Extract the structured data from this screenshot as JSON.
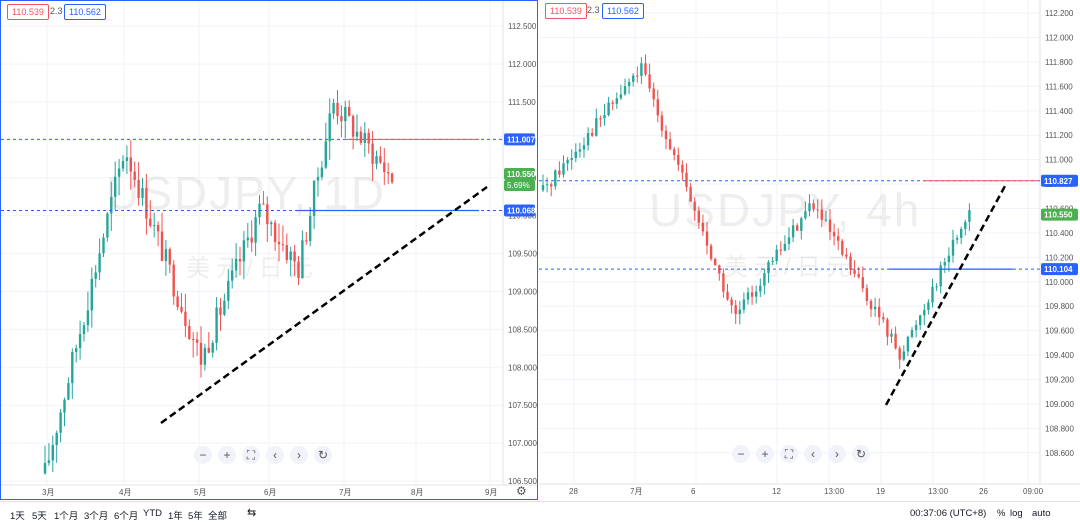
{
  "left": {
    "symbol": "USDJPY",
    "interval": "1D",
    "watermark_sub": "美元/日元",
    "sell_price": "110.539",
    "spread": "2.3",
    "buy_price": "110.562",
    "axis_labels": [
      "112.500",
      "112.000",
      "111.500",
      "111.000",
      "110.500",
      "110.000",
      "109.500",
      "109.000",
      "108.500",
      "108.000",
      "107.500",
      "107.000",
      "106.500"
    ],
    "time_labels": [
      "3月",
      "4月",
      "5月",
      "6月",
      "7月",
      "8月",
      "9月"
    ],
    "badge_upper": "111.007",
    "badge_lower": "110.068",
    "badge_last": "110.550",
    "badge_last_pct": "5.69%"
  },
  "right": {
    "symbol": "USDJPY",
    "interval": "4h",
    "watermark_sub": "美元/日元",
    "sell_price": "110.539",
    "spread": "2.3",
    "buy_price": "110.562",
    "axis_labels": [
      "112.200",
      "112.000",
      "111.800",
      "111.600",
      "111.400",
      "111.200",
      "111.000",
      "110.800",
      "110.600",
      "110.400",
      "110.200",
      "110.000",
      "109.800",
      "109.600",
      "109.400",
      "109.200",
      "109.000",
      "108.800",
      "108.600"
    ],
    "time_labels": [
      "28",
      "7月",
      "6",
      "12",
      "13:00",
      "19",
      "13:00",
      "26",
      "09:00"
    ],
    "badge_upper": "110.827",
    "badge_lower": "110.104",
    "badge_last": "110.550"
  },
  "nav_icons": [
    "zoom-out",
    "zoom-in",
    "fullscreen",
    "scroll-left",
    "scroll-right",
    "reset"
  ],
  "nav_glyphs": [
    "−",
    "+",
    "⛶",
    "‹",
    "›",
    "↻"
  ],
  "bottom": {
    "ranges": [
      "1天",
      "5天",
      "1个月",
      "3个月",
      "6个月",
      "YTD",
      "1年",
      "5年",
      "全部"
    ],
    "time": "00:37:06 (UTC+8)",
    "pct": "%",
    "log": "log",
    "auto": "auto"
  },
  "colors": {
    "up": "#26a69a",
    "down": "#ef5350",
    "dash_blue": "#2962ff",
    "dash_red": "#f7525f",
    "badge_blue": "#2962ff",
    "badge_green": "#4caf50"
  },
  "chart_data": [
    {
      "type": "candlestick",
      "title": "USDJPY, 1D",
      "ylim": [
        106.5,
        112.7
      ],
      "horizontal_levels": [
        111.007,
        110.068
      ],
      "last_price": 110.55,
      "x_ticks": [
        "3月",
        "4月",
        "5月",
        "6月",
        "7月",
        "8月",
        "9月"
      ]
    },
    {
      "type": "candlestick",
      "title": "USDJPY, 4h",
      "ylim": [
        108.5,
        112.25
      ],
      "horizontal_levels": [
        110.827,
        110.104
      ],
      "last_price": 110.55,
      "x_ticks": [
        "28",
        "7月",
        "6",
        "12",
        "13:00",
        "19",
        "13:00",
        "26",
        "09:00"
      ]
    }
  ]
}
